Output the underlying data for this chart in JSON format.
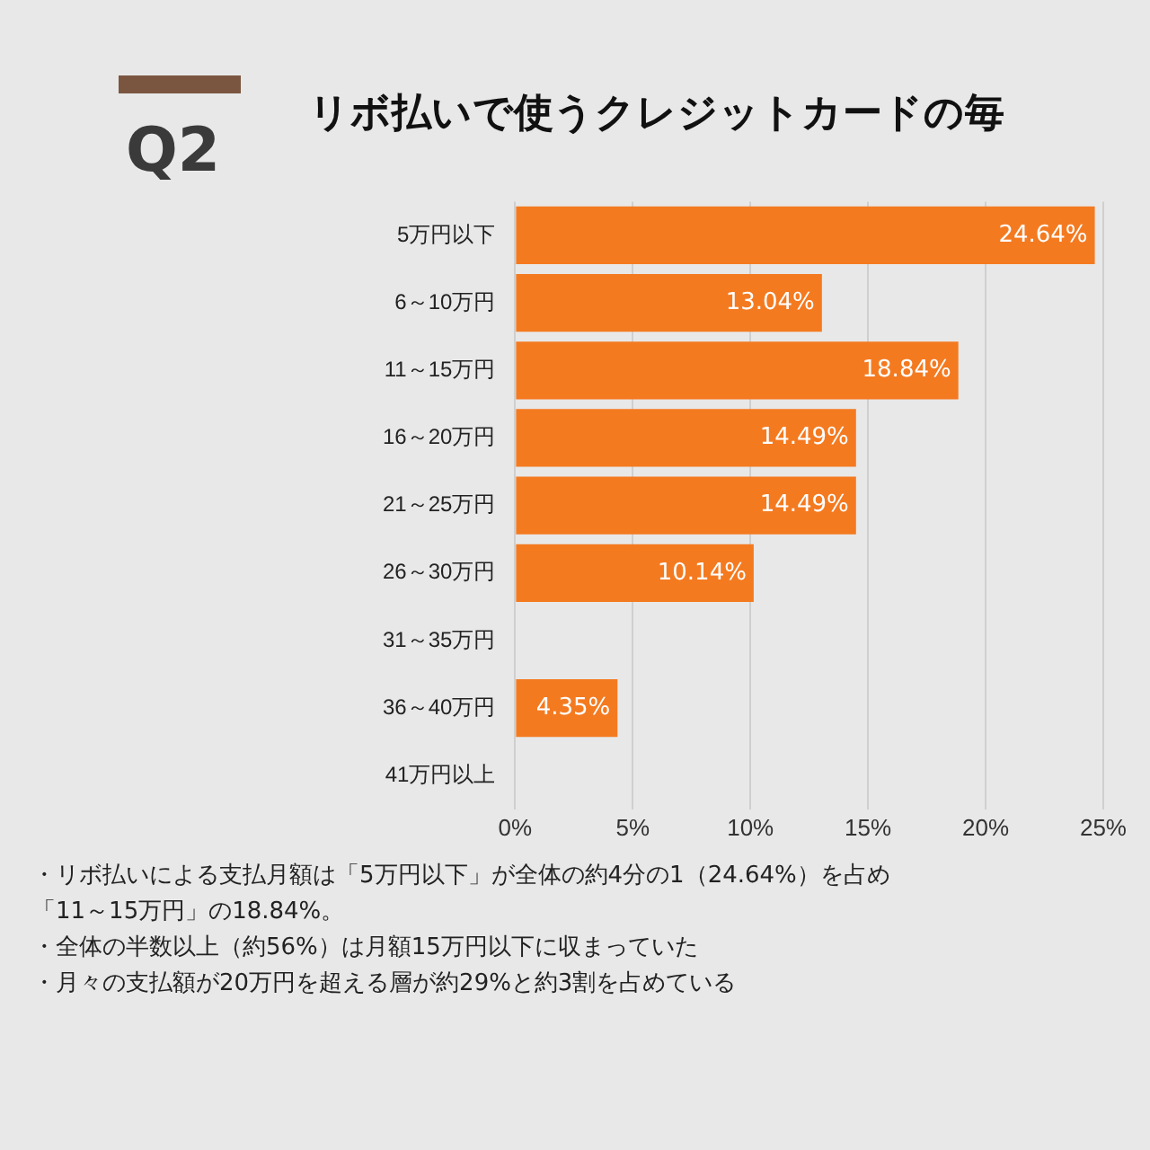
{
  "chart_data": {
    "type": "bar",
    "orientation": "horizontal",
    "title": "リボ払いで使うクレジットカードの毎",
    "categories": [
      "5万円以下",
      "6～10万円",
      "11～15万円",
      "16～20万円",
      "21～25万円",
      "26～30万円",
      "31～35万円",
      "36～40万円",
      "41万円以上"
    ],
    "values": [
      24.64,
      13.04,
      18.84,
      14.49,
      14.49,
      10.14,
      0,
      4.35,
      0
    ],
    "value_labels": [
      "24.64%",
      "13.04%",
      "18.84%",
      "14.49%",
      "14.49%",
      "10.14%",
      null,
      "4.35%",
      null
    ],
    "color": "#f47a20",
    "xlim": [
      0,
      25
    ],
    "xticks": [
      {
        "value": 0,
        "label": "0%"
      },
      {
        "value": 5,
        "label": "5%"
      },
      {
        "value": 10,
        "label": "10%"
      },
      {
        "value": 15,
        "label": "15%"
      },
      {
        "value": 20,
        "label": "20%"
      },
      {
        "value": 25,
        "label": "25%"
      }
    ],
    "grid": "x",
    "legend": false,
    "annotations": [
      "Q2",
      "・リボ払いによる支払月額は「5万円以下」が全体の約4分の1（24.64%）を占め",
      "「11～15万円」の18.84%。",
      "・全体の半数以上（約56%）は月額15万円以下に収まっていた",
      "・月々の支払額が20万円を超える層が約29%と約3割を占めている"
    ]
  }
}
